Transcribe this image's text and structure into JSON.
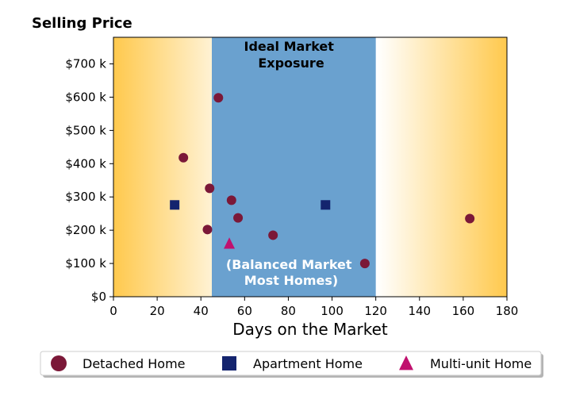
{
  "chart_data": {
    "type": "scatter",
    "title": "Selling Price",
    "xlabel": "Days on the Market",
    "ylabel": "",
    "xlim": [
      0,
      180
    ],
    "ylim": [
      0,
      780000
    ],
    "xticks": [
      0,
      20,
      40,
      60,
      80,
      100,
      120,
      140,
      160,
      180
    ],
    "yticks": [
      {
        "value": 0,
        "label": "$0"
      },
      {
        "value": 100000,
        "label": "$100 k"
      },
      {
        "value": 200000,
        "label": "$200 k"
      },
      {
        "value": 300000,
        "label": "$300 k"
      },
      {
        "value": 400000,
        "label": "$400 k"
      },
      {
        "value": 500000,
        "label": "$500 k"
      },
      {
        "value": 600000,
        "label": "$600 k"
      },
      {
        "value": 700000,
        "label": "$700 k"
      }
    ],
    "ideal_band": {
      "x_start": 45,
      "x_end": 120,
      "color": "#6aa1cf"
    },
    "annotations": [
      {
        "lines": [
          "Ideal Market",
          "Exposure"
        ],
        "color": "#000000"
      },
      {
        "lines": [
          "(Balanced Market",
          "Most Homes)"
        ],
        "color": "#ffffff"
      }
    ],
    "series": [
      {
        "name": "Detached Home",
        "marker": "circle",
        "color": "#7b1838",
        "points": [
          {
            "x": 48,
            "y": 598000
          },
          {
            "x": 32,
            "y": 418000
          },
          {
            "x": 44,
            "y": 326000
          },
          {
            "x": 54,
            "y": 290000
          },
          {
            "x": 57,
            "y": 237000
          },
          {
            "x": 43,
            "y": 202000
          },
          {
            "x": 73,
            "y": 185000
          },
          {
            "x": 115,
            "y": 100000
          },
          {
            "x": 163,
            "y": 235000
          }
        ]
      },
      {
        "name": "Apartment Home",
        "marker": "square",
        "color": "#14246e",
        "points": [
          {
            "x": 28,
            "y": 276000
          },
          {
            "x": 97,
            "y": 276000
          }
        ]
      },
      {
        "name": "Multi-unit Home",
        "marker": "triangle",
        "color": "#c0116e",
        "points": [
          {
            "x": 53,
            "y": 160000
          }
        ]
      }
    ],
    "legend": {
      "position": "bottom",
      "columns": 3
    },
    "background_gradient": {
      "edge": "#ffc94d",
      "center": "#ffffff"
    }
  }
}
